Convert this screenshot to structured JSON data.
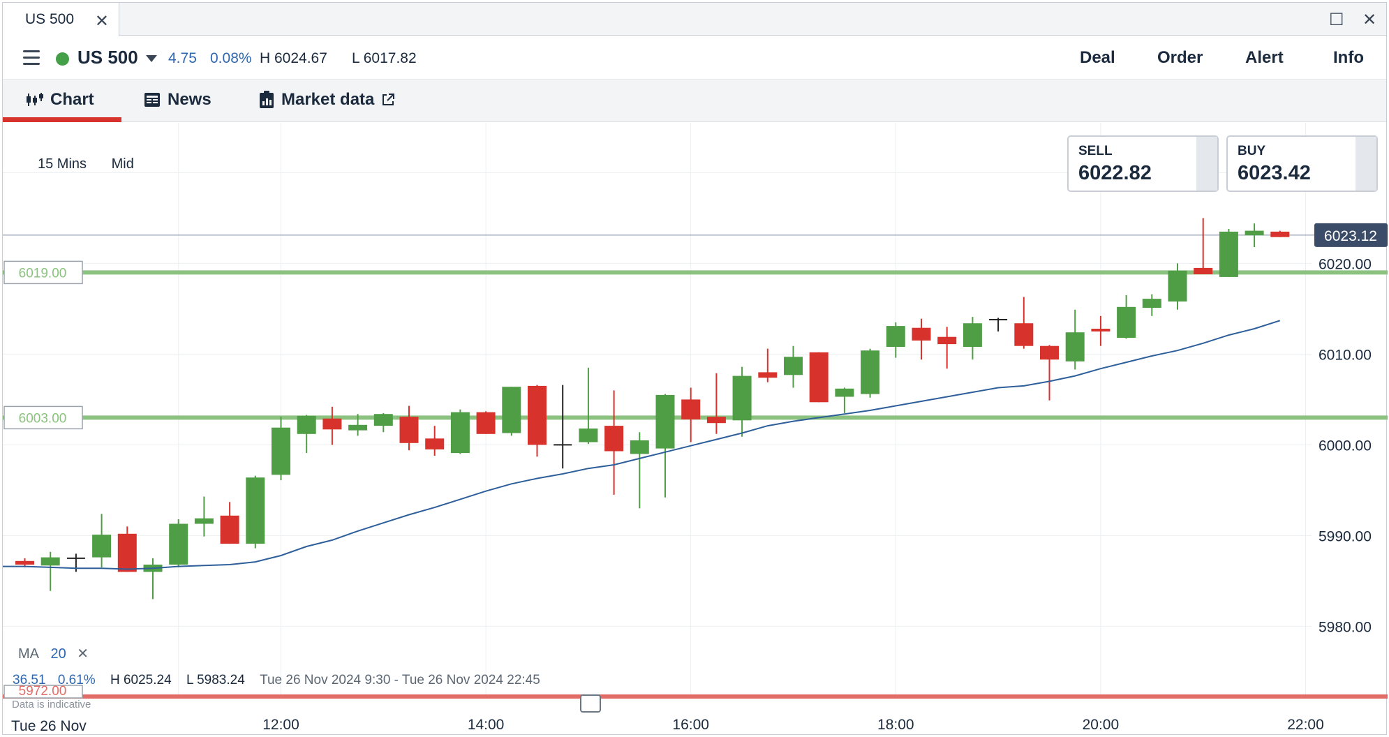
{
  "window": {
    "tab_title": "US 500",
    "close_glyph": "✕",
    "maximize_glyph": "☐",
    "window_close_glyph": "✕"
  },
  "header": {
    "instrument": "US 500",
    "change_points": "4.75",
    "change_percent": "0.08%",
    "high": "H 6024.67",
    "low": "L 6017.82",
    "status_color": "#43a047",
    "menu": [
      "Deal",
      "Order",
      "Alert",
      "Info"
    ]
  },
  "subtabs": [
    {
      "label": "Chart",
      "icon": "candlestick-icon",
      "active": true
    },
    {
      "label": "News",
      "icon": "newspaper-icon",
      "active": false
    },
    {
      "label": "Market data",
      "icon": "clipboard-icon",
      "active": false,
      "external": true
    }
  ],
  "quotes": {
    "sell_label": "SELL",
    "sell_value": "6022.82",
    "buy_label": "BUY",
    "buy_value": "6023.42"
  },
  "chart_controls": {
    "interval": "15 Mins",
    "price_type": "Mid"
  },
  "indicator": {
    "name": "MA",
    "period": "20",
    "remove_glyph": "✕",
    "color": "#2e5f9a"
  },
  "range_stats": {
    "change": "36.51",
    "change_percent": "0.61%",
    "high": "H 6025.24",
    "low": "L 5983.24",
    "period": "Tue 26 Nov 2024 9:30 - Tue 26 Nov 2024 22:45"
  },
  "footer": {
    "indicative": "Data is indicative",
    "date": "Tue 26 Nov"
  },
  "colors": {
    "up": "#4f9e45",
    "down": "#d8322c",
    "level_green": "#8cc27f",
    "level_red": "#e26d68",
    "current_price_bg": "#3b4c68"
  },
  "chart_data": {
    "type": "candlestick",
    "x_ticks": [
      "12:00",
      "14:00",
      "16:00",
      "18:00",
      "20:00",
      "22:00"
    ],
    "y_ticks": [
      "5980.00",
      "5990.00",
      "6000.00",
      "6010.00",
      "6020.00"
    ],
    "ylim": [
      5972.8,
      6035.5
    ],
    "current_price": "6023.12",
    "levels": [
      {
        "label": "6019.00",
        "value": 6019.0,
        "color": "green"
      },
      {
        "label": "6003.00",
        "value": 6003.0,
        "color": "green"
      },
      {
        "label": "5972.00",
        "value": 5972.0,
        "color": "red"
      }
    ],
    "candles": [
      {
        "t": "9:30",
        "o": 5987.2,
        "h": 5987.5,
        "l": 5986.5,
        "c": 5986.8
      },
      {
        "t": "9:45",
        "o": 5986.7,
        "h": 5988.2,
        "l": 5983.9,
        "c": 5987.6
      },
      {
        "t": "10:00",
        "o": 5987.5,
        "h": 5988.0,
        "l": 5986.0,
        "c": 5987.4
      },
      {
        "t": "10:15",
        "o": 5987.6,
        "h": 5992.4,
        "l": 5986.5,
        "c": 5990.1
      },
      {
        "t": "10:30",
        "o": 5990.2,
        "h": 5991.0,
        "l": 5986.0,
        "c": 5986.0
      },
      {
        "t": "10:45",
        "o": 5986.0,
        "h": 5987.5,
        "l": 5983.0,
        "c": 5986.8
      },
      {
        "t": "11:00",
        "o": 5986.8,
        "h": 5991.8,
        "l": 5986.5,
        "c": 5991.3
      },
      {
        "t": "11:15",
        "o": 5991.3,
        "h": 5994.3,
        "l": 5989.9,
        "c": 5991.9
      },
      {
        "t": "11:30",
        "o": 5992.2,
        "h": 5993.7,
        "l": 5989.1,
        "c": 5989.1
      },
      {
        "t": "11:45",
        "o": 5989.1,
        "h": 5996.6,
        "l": 5988.6,
        "c": 5996.4
      },
      {
        "t": "12:00",
        "o": 5996.7,
        "h": 6003.1,
        "l": 5996.1,
        "c": 6001.9
      },
      {
        "t": "12:15",
        "o": 6001.2,
        "h": 6003.3,
        "l": 5999.1,
        "c": 6003.2
      },
      {
        "t": "12:30",
        "o": 6002.9,
        "h": 6004.2,
        "l": 6000.0,
        "c": 6001.7
      },
      {
        "t": "12:45",
        "o": 6001.6,
        "h": 6003.4,
        "l": 6001.0,
        "c": 6002.2
      },
      {
        "t": "13:00",
        "o": 6002.1,
        "h": 6003.5,
        "l": 6001.4,
        "c": 6003.4
      },
      {
        "t": "13:15",
        "o": 6003.1,
        "h": 6004.3,
        "l": 5999.4,
        "c": 6000.2
      },
      {
        "t": "13:30",
        "o": 6000.7,
        "h": 6002.1,
        "l": 5998.8,
        "c": 5999.5
      },
      {
        "t": "13:45",
        "o": 5999.1,
        "h": 6003.9,
        "l": 5999.0,
        "c": 6003.6
      },
      {
        "t": "14:00",
        "o": 6003.6,
        "h": 6003.7,
        "l": 6001.2,
        "c": 6001.2
      },
      {
        "t": "14:15",
        "o": 6001.3,
        "h": 6006.4,
        "l": 6001.0,
        "c": 6006.4
      },
      {
        "t": "14:30",
        "o": 6006.5,
        "h": 6006.6,
        "l": 5998.7,
        "c": 6000.0
      },
      {
        "t": "14:45",
        "o": 6000.0,
        "h": 6006.6,
        "l": 5997.4,
        "c": 6000.0
      },
      {
        "t": "15:00",
        "o": 6000.3,
        "h": 6008.5,
        "l": 6000.1,
        "c": 6001.8
      },
      {
        "t": "15:15",
        "o": 6002.1,
        "h": 6006.0,
        "l": 5994.5,
        "c": 5999.3
      },
      {
        "t": "15:30",
        "o": 5999.0,
        "h": 6001.4,
        "l": 5993.0,
        "c": 6000.5
      },
      {
        "t": "15:45",
        "o": 5999.6,
        "h": 6005.6,
        "l": 5994.2,
        "c": 6005.5
      },
      {
        "t": "16:00",
        "o": 6005.0,
        "h": 6006.3,
        "l": 6000.3,
        "c": 6002.8
      },
      {
        "t": "16:15",
        "o": 6003.1,
        "h": 6007.9,
        "l": 6001.2,
        "c": 6002.4
      },
      {
        "t": "16:30",
        "o": 6002.7,
        "h": 6008.6,
        "l": 6000.9,
        "c": 6007.6
      },
      {
        "t": "16:45",
        "o": 6008.0,
        "h": 6010.6,
        "l": 6006.9,
        "c": 6007.4
      },
      {
        "t": "17:00",
        "o": 6007.7,
        "h": 6010.9,
        "l": 6006.3,
        "c": 6009.7
      },
      {
        "t": "17:15",
        "o": 6010.2,
        "h": 6010.2,
        "l": 6004.7,
        "c": 6004.7
      },
      {
        "t": "17:30",
        "o": 6005.3,
        "h": 6006.3,
        "l": 6003.5,
        "c": 6006.2
      },
      {
        "t": "17:45",
        "o": 6005.6,
        "h": 6010.6,
        "l": 6005.2,
        "c": 6010.4
      },
      {
        "t": "18:00",
        "o": 6010.8,
        "h": 6013.5,
        "l": 6009.6,
        "c": 6013.1
      },
      {
        "t": "18:15",
        "o": 6012.9,
        "h": 6013.9,
        "l": 6009.4,
        "c": 6011.5
      },
      {
        "t": "18:30",
        "o": 6011.9,
        "h": 6013.0,
        "l": 6008.4,
        "c": 6011.1
      },
      {
        "t": "18:45",
        "o": 6010.8,
        "h": 6014.1,
        "l": 6009.4,
        "c": 6013.4
      },
      {
        "t": "19:00",
        "o": 6013.8,
        "h": 6014.0,
        "l": 6012.5,
        "c": 6013.8
      },
      {
        "t": "19:15",
        "o": 6013.4,
        "h": 6016.3,
        "l": 6010.6,
        "c": 6010.9
      },
      {
        "t": "19:30",
        "o": 6010.9,
        "h": 6011.0,
        "l": 6004.9,
        "c": 6009.4
      },
      {
        "t": "19:45",
        "o": 6009.2,
        "h": 6014.9,
        "l": 6008.3,
        "c": 6012.4
      },
      {
        "t": "20:00",
        "o": 6012.8,
        "h": 6014.2,
        "l": 6010.9,
        "c": 6012.5
      },
      {
        "t": "20:15",
        "o": 6011.8,
        "h": 6016.5,
        "l": 6011.7,
        "c": 6015.2
      },
      {
        "t": "20:30",
        "o": 6015.1,
        "h": 6016.6,
        "l": 6014.2,
        "c": 6016.1
      },
      {
        "t": "20:45",
        "o": 6015.8,
        "h": 6020.0,
        "l": 6014.9,
        "c": 6019.2
      },
      {
        "t": "21:00",
        "o": 6019.5,
        "h": 6025.0,
        "l": 6018.8,
        "c": 6018.8
      },
      {
        "t": "21:15",
        "o": 6018.5,
        "h": 6023.8,
        "l": 6018.5,
        "c": 6023.5
      },
      {
        "t": "21:30",
        "o": 6023.1,
        "h": 6024.4,
        "l": 6021.8,
        "c": 6023.6
      },
      {
        "t": "21:45",
        "o": 6023.5,
        "h": 6023.6,
        "l": 6022.9,
        "c": 6022.9
      }
    ],
    "ma": [
      5986.6,
      5986.5,
      5986.4,
      5986.4,
      5986.3,
      5986.4,
      5986.6,
      5986.7,
      5986.8,
      5987.1,
      5987.8,
      5988.8,
      5989.5,
      5990.5,
      5991.4,
      5992.3,
      5993.1,
      5994.0,
      5994.9,
      5995.7,
      5996.3,
      5996.8,
      5997.4,
      5997.8,
      5998.5,
      5999.2,
      5999.9,
      6000.6,
      6001.3,
      6002.1,
      6002.6,
      6003.0,
      6003.4,
      6003.8,
      6004.3,
      6004.8,
      6005.3,
      6005.8,
      6006.3,
      6006.5,
      6007.0,
      6007.6,
      6008.4,
      6009.1,
      6009.8,
      6010.4,
      6011.2,
      6012.1,
      6012.8,
      6013.7
    ]
  }
}
